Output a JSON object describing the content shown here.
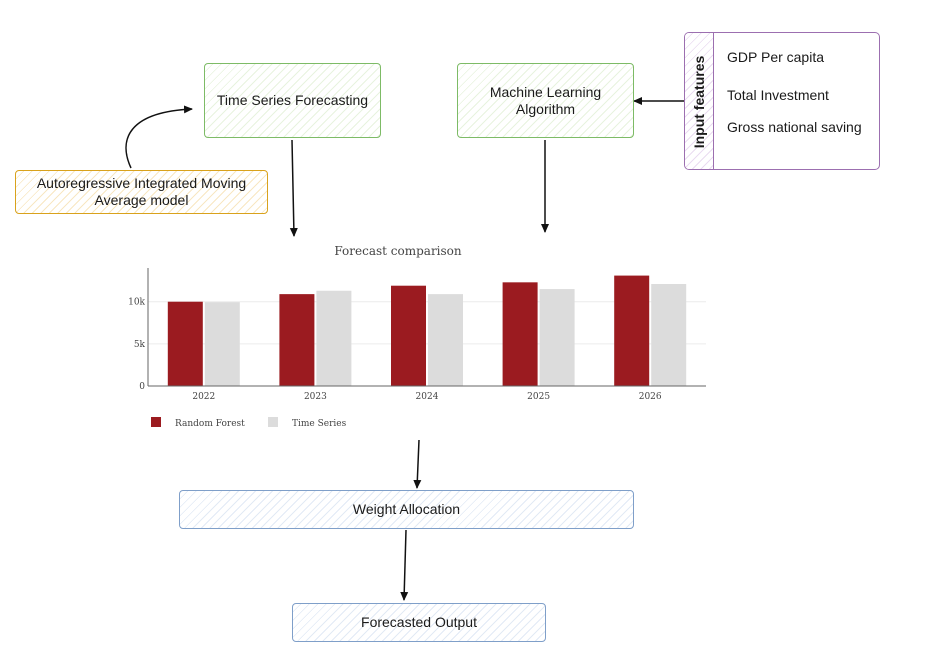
{
  "nodes": {
    "time_series": "Time Series Forecasting",
    "ml_algorithm": [
      "Machine Learning",
      "Algorithm"
    ],
    "arima": [
      "Autoregressive Integrated Moving",
      "Average model"
    ],
    "weight_allocation": "Weight Allocation",
    "forecasted_output": "Forecasted Output"
  },
  "input_features": {
    "title": "Input features",
    "items": [
      "GDP Per capita",
      "Total Investment",
      "Gross national saving"
    ]
  },
  "colors": {
    "random_forest": "#9b1b20",
    "time_series": "#dcdcdc"
  },
  "chart_data": {
    "type": "bar",
    "title": "Forecast comparison",
    "categories": [
      "2022",
      "2023",
      "2024",
      "2025",
      "2026"
    ],
    "series": [
      {
        "name": "Random Forest",
        "values": [
          10000,
          10900,
          11900,
          12300,
          13100
        ]
      },
      {
        "name": "Time Series",
        "values": [
          9950,
          11300,
          10900,
          11500,
          12100
        ]
      }
    ],
    "y_ticks": [
      {
        "value": 0,
        "label": "0"
      },
      {
        "value": 5000,
        "label": "5k"
      },
      {
        "value": 10000,
        "label": "10k"
      }
    ],
    "ylim": [
      0,
      14000
    ],
    "legend_position": "bottom-left",
    "grid": true
  }
}
